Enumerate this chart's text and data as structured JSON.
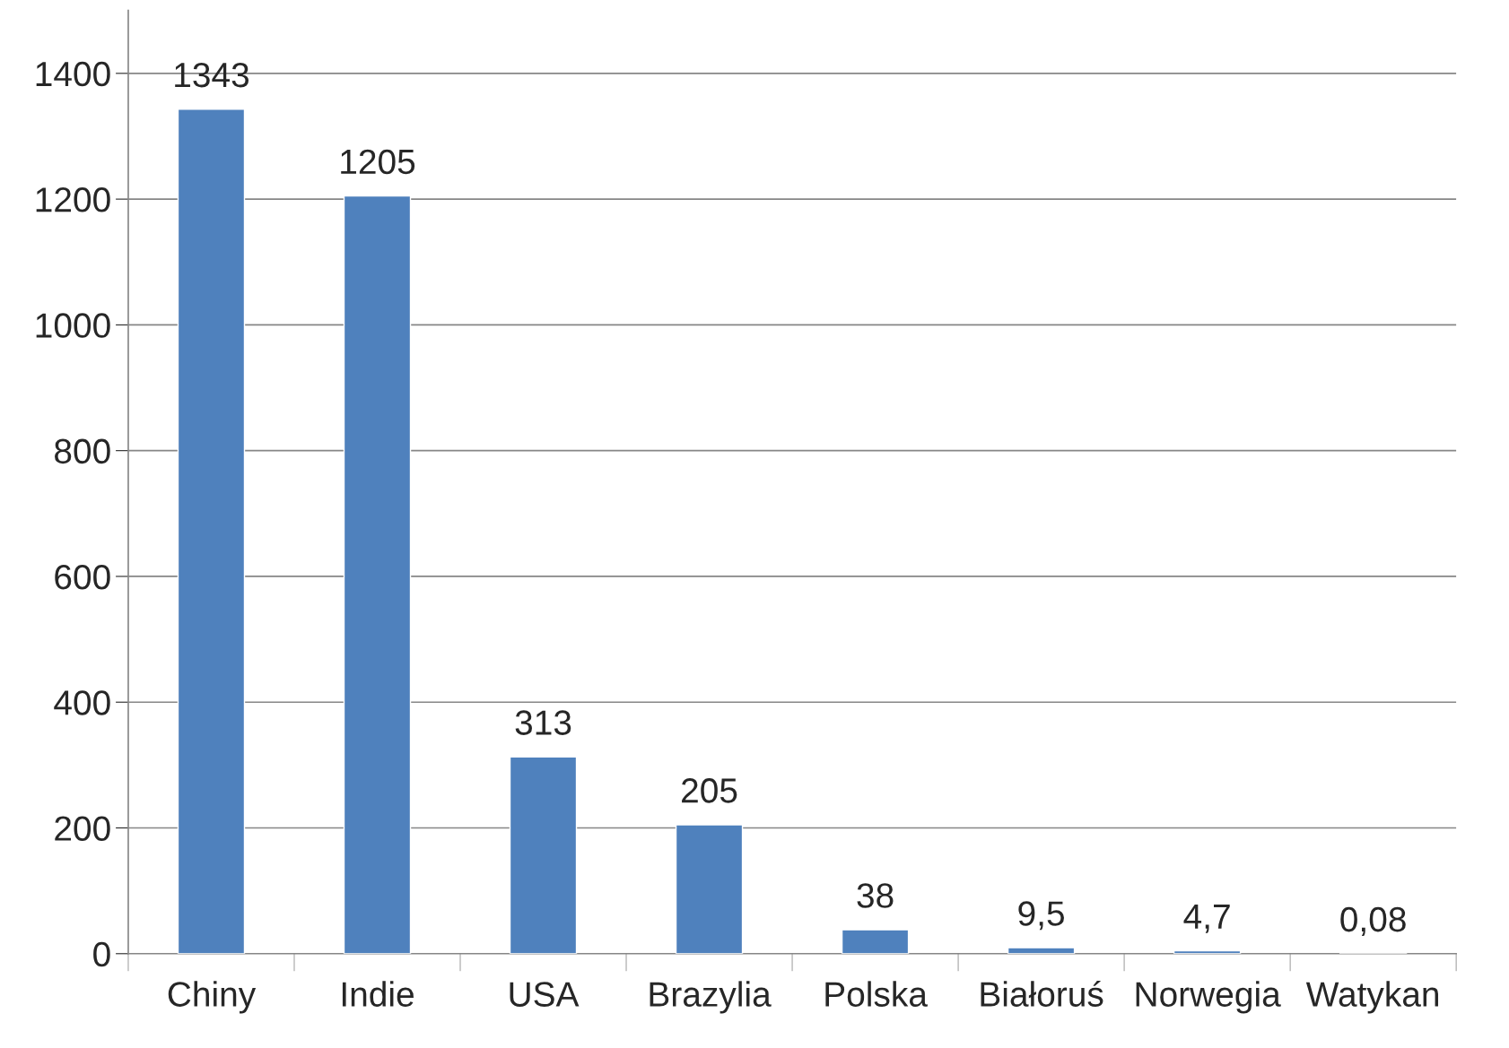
{
  "chart_data": {
    "type": "bar",
    "categories": [
      "Chiny",
      "Indie",
      "USA",
      "Brazylia",
      "Polska",
      "Białoruś",
      "Norwegia",
      "Watykan"
    ],
    "values": [
      1343,
      1205,
      313,
      205,
      38,
      9.5,
      4.7,
      0.08
    ],
    "value_labels": [
      "1343",
      "1205",
      "313",
      "205",
      "38",
      "9,5",
      "4,7",
      "0,08"
    ],
    "color": "#4f81bd",
    "ylim": [
      0,
      1500
    ],
    "yticks": [
      0,
      200,
      400,
      600,
      800,
      1000,
      1200,
      1400
    ],
    "grid": "y",
    "legend": false
  }
}
